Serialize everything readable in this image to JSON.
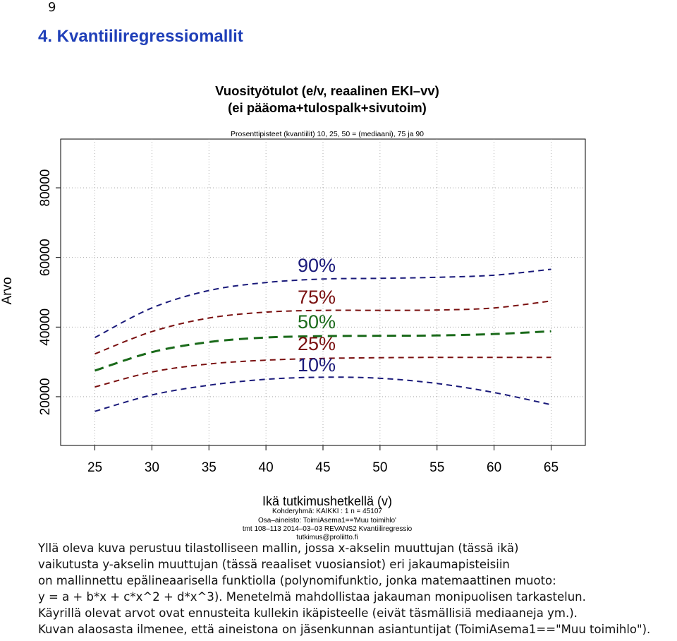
{
  "page_number": "9",
  "heading": "4. Kvantiiliregressiomallit",
  "chart_data": {
    "type": "line",
    "title": "Vuosityötulot (e/v, reaalinen EKI–vv)",
    "title_line2": "(ei pääoma+tulospalk+sivutoim)",
    "subtitle": "Prosenttipisteet (kvantiilit) 10, 25, 50 = (mediaani), 75 ja 90",
    "xlabel": "Ikä tutkimushetkellä (v)",
    "ylabel": "Arvo",
    "xlim": [
      22,
      68
    ],
    "ylim": [
      6000,
      94000
    ],
    "x_ticks": [
      25,
      30,
      35,
      40,
      45,
      50,
      55,
      60,
      65
    ],
    "y_ticks": [
      20000,
      40000,
      60000,
      80000
    ],
    "grid": true,
    "x": [
      25,
      30,
      35,
      40,
      45,
      50,
      55,
      60,
      65
    ],
    "series": [
      {
        "name": "90%",
        "color": "#1a1a7a",
        "values": [
          37000,
          45500,
          50500,
          52800,
          53800,
          54000,
          54300,
          54900,
          56600
        ]
      },
      {
        "name": "75%",
        "color": "#7a1010",
        "values": [
          32300,
          38700,
          42600,
          44300,
          44800,
          44800,
          44900,
          45500,
          47500
        ]
      },
      {
        "name": "50%",
        "color": "#1a6a1a",
        "values": [
          27500,
          32800,
          35700,
          37000,
          37400,
          37500,
          37600,
          38000,
          38800
        ]
      },
      {
        "name": "25%",
        "color": "#7a1010",
        "values": [
          22800,
          27100,
          29400,
          30500,
          31000,
          31200,
          31300,
          31300,
          31300
        ]
      },
      {
        "name": "10%",
        "color": "#1a1a7a",
        "values": [
          15800,
          20500,
          23300,
          25000,
          25600,
          25300,
          23800,
          21200,
          17700
        ]
      }
    ],
    "legend_labels": [
      "90%",
      "75%",
      "50%",
      "25%",
      "10%"
    ],
    "legend_colors": [
      "#1a1a7a",
      "#7a1010",
      "#1a6a1a",
      "#7a1010",
      "#1a1a7a"
    ],
    "notes": [
      "Kohderyhmä:  KAIKKI : 1  n =  45107",
      "Osa–aineisto:  ToimiAsema1=='Muu toimihlo'",
      "tmt 108–113 2014–03–03 REVANS2 Kvantiiliregressio",
      "tutkimus@proliitto.fi"
    ]
  },
  "body": [
    "Yllä oleva kuva perustuu tilastolliseen mallin, jossa x-akselin muuttujan (tässä ikä)",
    "vaikutusta y-akselin muuttujan (tässä reaaliset vuosiansiot) eri jakaumapisteisiin",
    "on mallinnettu epälineaarisella funktiolla (polynomifunktio, jonka matemaattinen muoto:",
    "y = a + b*x + c*x^2 + d*x^3). Menetelmä mahdollistaa jakauman monipuolisen tarkastelun.",
    "Käyrillä olevat arvot ovat ennusteita kullekin ikäpisteelle (eivät täsmällisiä mediaaneja ym.).",
    "Kuvan alaosasta ilmenee, että aineistona on jäsenkunnan asiantuntijat (ToimiAsema1==\"Muu toimihlo\")."
  ]
}
